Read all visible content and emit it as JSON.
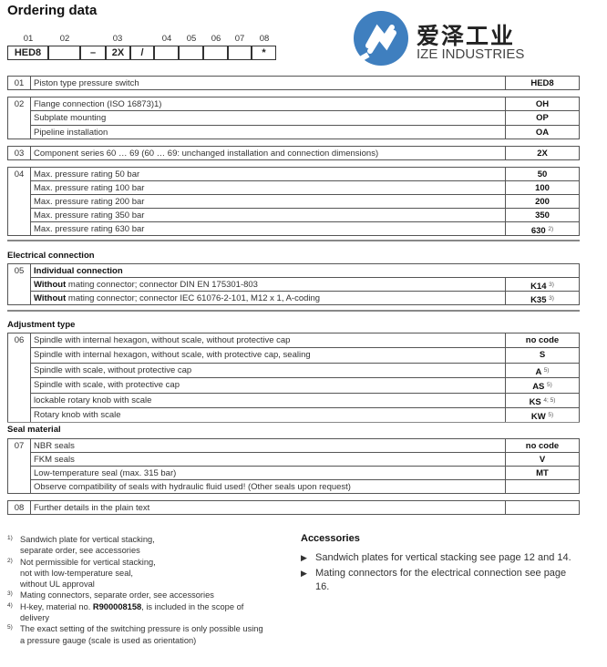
{
  "title": "Ordering data",
  "logo": {
    "cn": "爱泽工业",
    "en": "IZE INDUSTRIES",
    "color": "#3f7fbf"
  },
  "type_code": {
    "numbers": [
      "01",
      "02",
      "03",
      "04",
      "05",
      "06",
      "07",
      "08"
    ],
    "boxes": [
      "HED8",
      "",
      "–",
      "2X",
      "/",
      "",
      "",
      "",
      "",
      "*"
    ]
  },
  "groups": [
    {
      "num": "01",
      "rows": [
        {
          "text": "Piston type pressure switch",
          "code": "HED8"
        }
      ]
    },
    {
      "num": "02",
      "rows": [
        {
          "text": "Flange connection (ISO 16873)1)",
          "code": "OH"
        },
        {
          "text": "Subplate mounting",
          "code": "OP"
        },
        {
          "text": "Pipeline installation",
          "code": "OA"
        }
      ]
    },
    {
      "num": "03",
      "rows": [
        {
          "text": "Component series 60 … 69 (60 … 69: unchanged installation and connection dimensions)",
          "code": "2X"
        }
      ]
    },
    {
      "num": "04",
      "rows": [
        {
          "text": "Max. pressure rating 50 bar",
          "code": "50"
        },
        {
          "text": "Max. pressure rating 100 bar",
          "code": "100"
        },
        {
          "text": "Max. pressure rating 200 bar",
          "code": "200"
        },
        {
          "text": "Max. pressure rating 350 bar",
          "code": "350"
        },
        {
          "text": "Max. pressure rating 630 bar",
          "code": "630",
          "sup": "2)"
        }
      ]
    },
    {
      "section": "Electrical connection",
      "num": "05",
      "rows": [
        {
          "bold": "Individual connection",
          "text": "",
          "nocode": true
        },
        {
          "bold": "Without",
          "text": " mating connector; connector DIN EN 175301-803",
          "code": "K14",
          "sup": "3)"
        },
        {
          "bold": "Without",
          "text": " mating connector; connector IEC 61076-2-101, M12 x 1, A-coding",
          "code": "K35",
          "sup": "3)"
        }
      ]
    },
    {
      "section": "Adjustment type",
      "num": "06",
      "rows": [
        {
          "text": "Spindle with internal hexagon, without scale, without protective cap",
          "code": "no code"
        },
        {
          "text": "Spindle with internal hexagon, without scale, with protective cap, sealing",
          "code": "S"
        },
        {
          "text": "Spindle with scale, without protective cap",
          "code": "A",
          "sup": "5)"
        },
        {
          "text": "Spindle with scale, with protective cap",
          "code": "AS",
          "sup": "5)"
        },
        {
          "text": "lockable rotary knob with scale",
          "code": "KS",
          "sup": "4; 5)"
        },
        {
          "text": "Rotary knob with scale",
          "code": "KW",
          "sup": "5)"
        }
      ]
    },
    {
      "section": "Seal material",
      "num": "07",
      "rows": [
        {
          "text": "NBR seals",
          "code": "no code"
        },
        {
          "text": "FKM seals",
          "code": "V"
        },
        {
          "text": "Low-temperature seal (max. 315 bar)",
          "code": "MT"
        },
        {
          "text": "Observe compatibility of seals with hydraulic fluid used! (Other seals upon request)",
          "code": ""
        }
      ]
    },
    {
      "num": "08",
      "rows": [
        {
          "text": "Further details in the plain text",
          "code": ""
        }
      ]
    }
  ],
  "footnotes": [
    {
      "mark": "1)",
      "lines": [
        "Sandwich plate for vertical stacking,",
        "separate order, see accessories"
      ]
    },
    {
      "mark": "2)",
      "lines": [
        "Not permissible for vertical stacking,",
        "not with low-temperature seal,",
        "without UL approval"
      ]
    },
    {
      "mark": "3)",
      "lines": [
        "Mating connectors, separate order, see accessories"
      ]
    },
    {
      "mark": "4)",
      "pre": "H-key, material no. ",
      "bold": "R900008158",
      "post": ", is included in the scope of",
      "lines": [
        "delivery"
      ]
    },
    {
      "mark": "5)",
      "lines": [
        "The exact setting of the switching pressure is only possible using",
        "a pressure gauge (scale is used as orientation)"
      ]
    }
  ],
  "accessories": {
    "title": "Accessories",
    "items": [
      "Sandwich plates for vertical stacking see page 12 and 14.",
      "Mating connectors for the electrical connection see page 16."
    ]
  }
}
